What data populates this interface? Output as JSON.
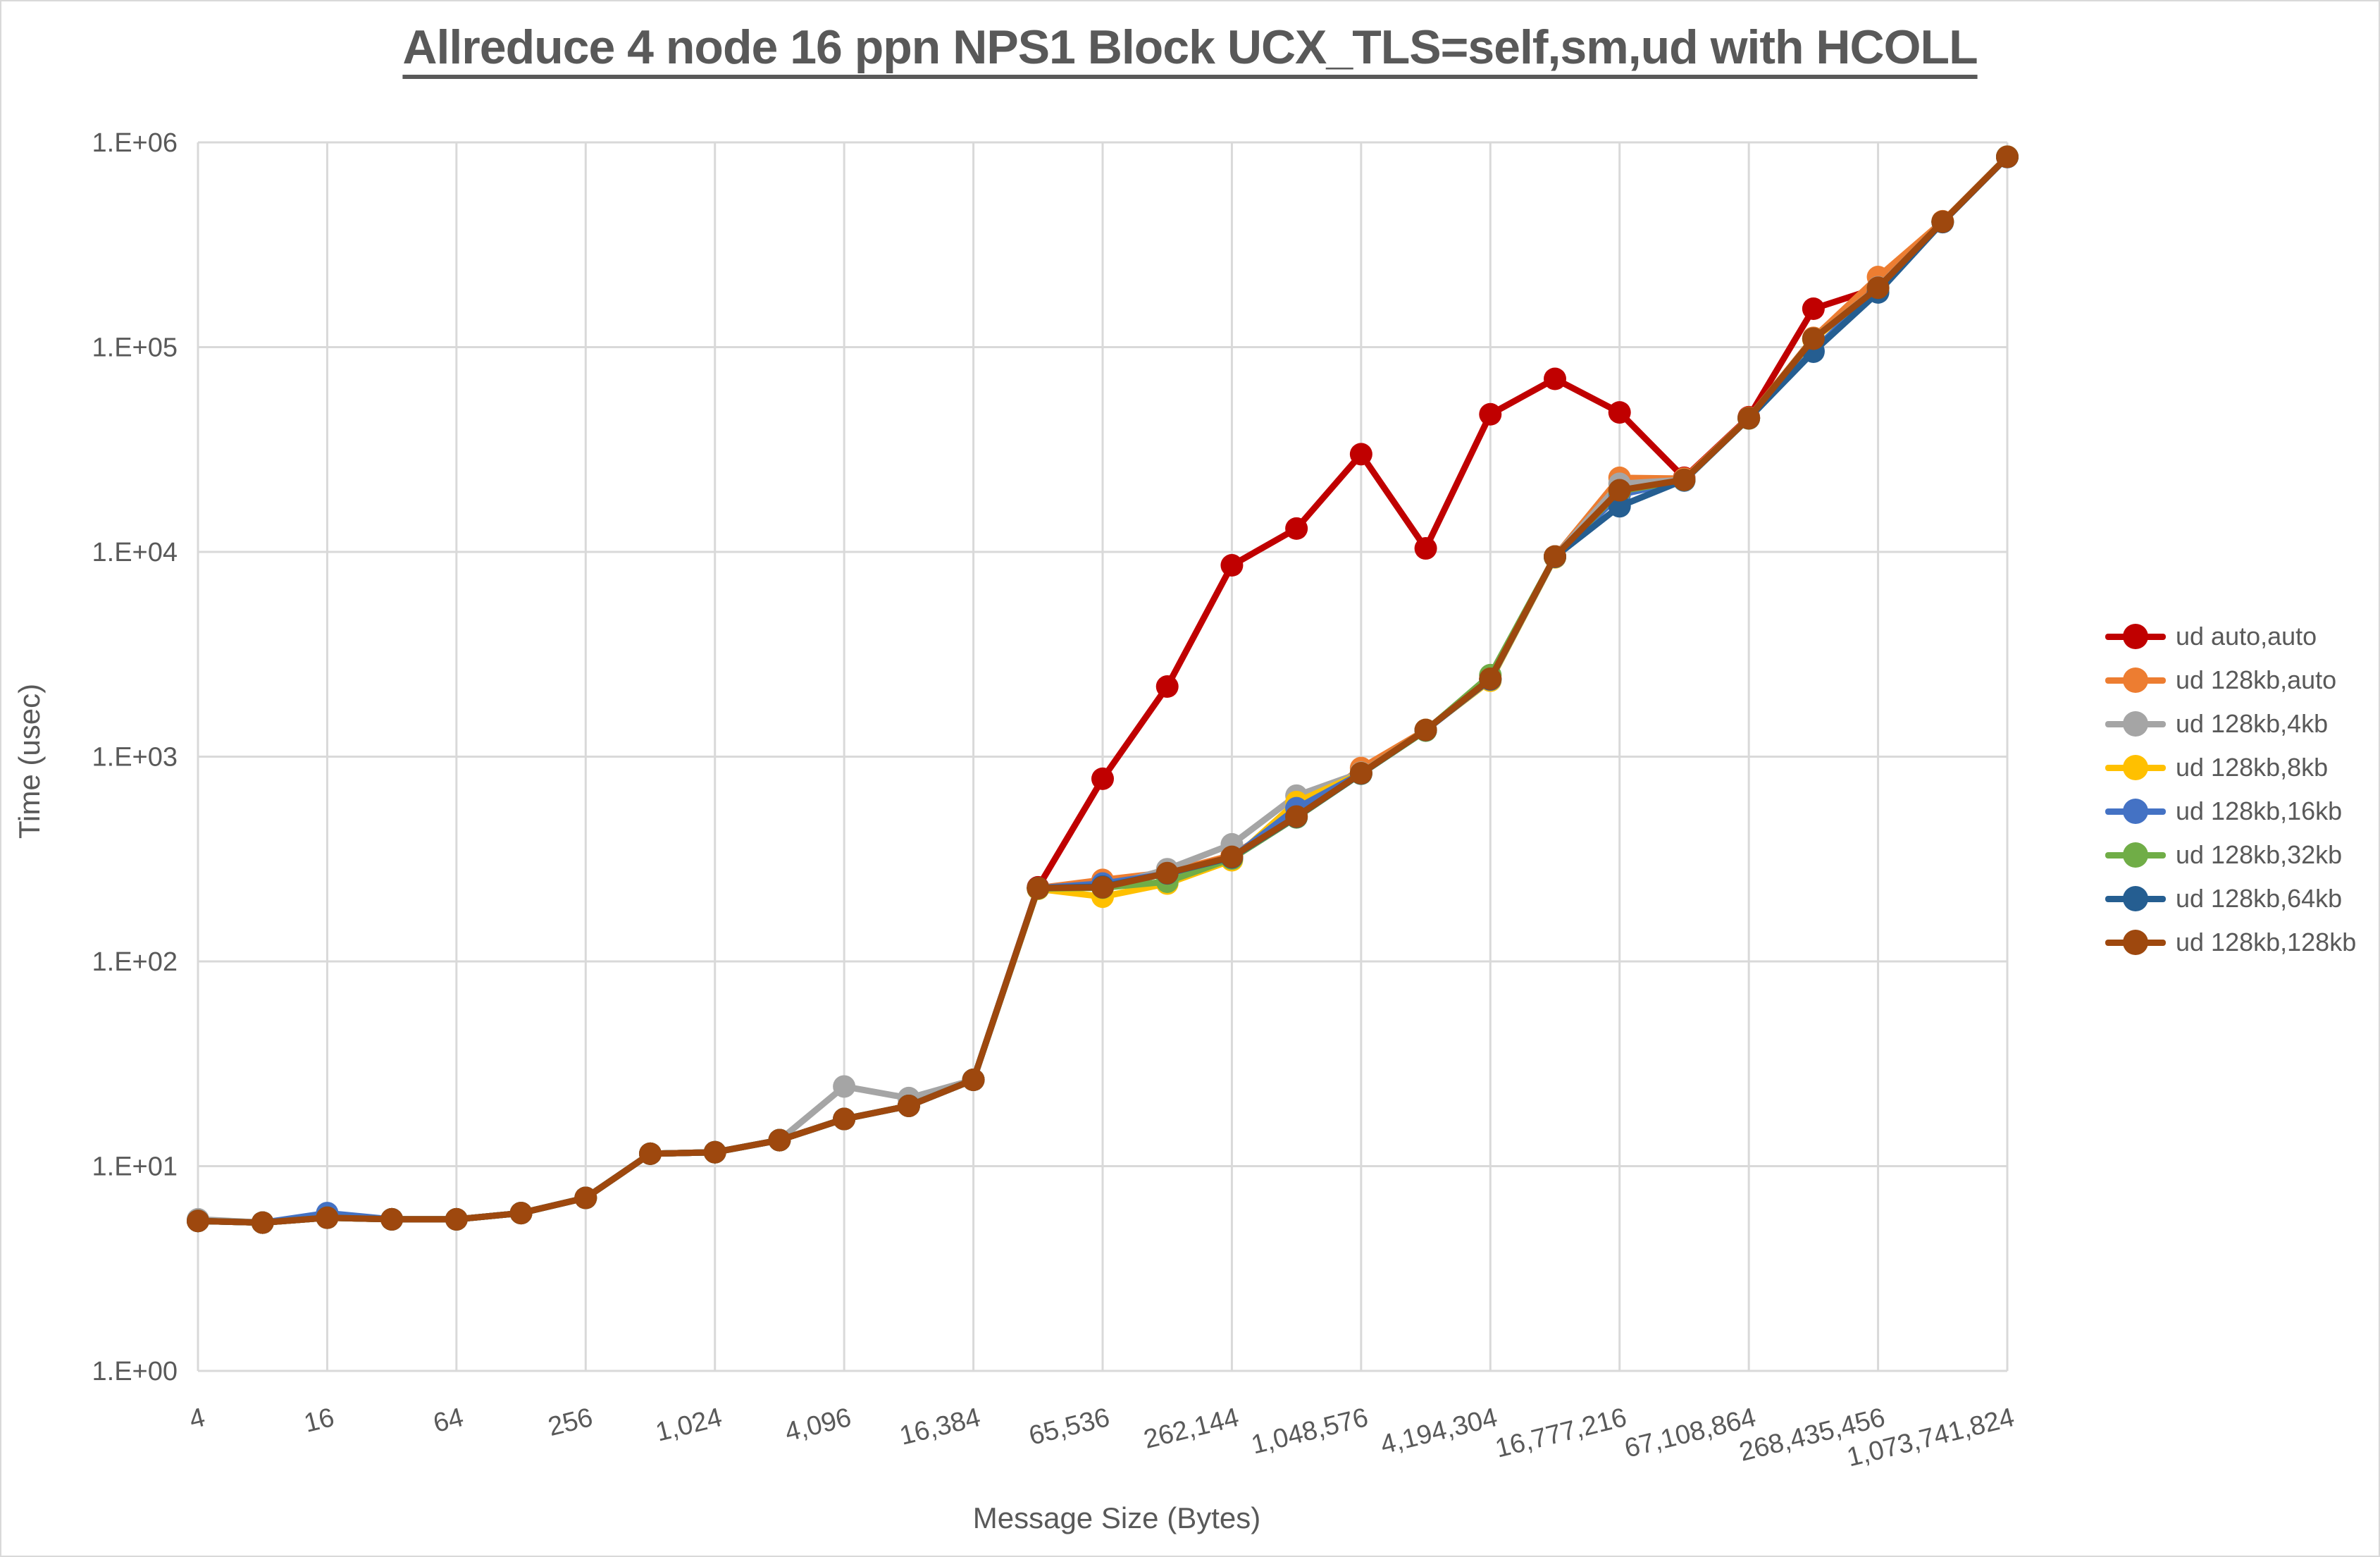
{
  "window": {
    "background": "#ffffff",
    "border_color": "#d9d9d9",
    "text_color": "#595959",
    "grid_color": "#d9d9d9"
  },
  "chart_data": {
    "type": "line",
    "title": "Allreduce 4 node 16 ppn NPS1 Block UCX_TLS=self,sm,ud with HCOLL",
    "xlabel": "Message Size (Bytes)",
    "ylabel": "Time (usec)",
    "x_scale": "log2",
    "y_scale": "log10",
    "ylim": [
      1,
      1000000
    ],
    "grid": true,
    "legend_position": "right",
    "y_tick_labels": [
      "1.E+00",
      "1.E+01",
      "1.E+02",
      "1.E+03",
      "1.E+04",
      "1.E+05",
      "1.E+06"
    ],
    "x": [
      4,
      8,
      16,
      32,
      64,
      128,
      256,
      512,
      1024,
      2048,
      4096,
      8192,
      16384,
      32768,
      65536,
      131072,
      262144,
      524288,
      1048576,
      2097152,
      4194304,
      8388608,
      16777216,
      33554432,
      67108864,
      134217728,
      268435456,
      536870912,
      1073741824
    ],
    "x_tick_labels": [
      "4",
      "16",
      "64",
      "256",
      "1,024",
      "4,096",
      "16,384",
      "65,536",
      "262,144",
      "1,048,576",
      "4,194,304",
      "16,777,216",
      "67,108,864",
      "268,435,456",
      "1,073,741,824"
    ],
    "series": [
      {
        "name": "ud auto,auto",
        "color": "#C00000",
        "values": [
          5.4,
          5.3,
          5.6,
          5.5,
          5.5,
          5.9,
          7.0,
          11.5,
          11.7,
          13.4,
          17,
          19.7,
          26.4,
          230,
          780,
          2200,
          8600,
          13000,
          30000,
          10400,
          47000,
          70000,
          48000,
          23000,
          45500,
          154000,
          195000,
          410000,
          850000
        ]
      },
      {
        "name": "ud 128kb,auto",
        "color": "#ED7D31",
        "values": [
          5.4,
          5.3,
          5.6,
          5.5,
          5.5,
          5.9,
          7.0,
          11.5,
          11.7,
          13.4,
          17,
          19.7,
          26.4,
          228,
          250,
          272,
          330,
          515,
          880,
          1350,
          2400,
          9500,
          23000,
          22800,
          45200,
          111000,
          220000,
          412000,
          852000
        ]
      },
      {
        "name": "ud 128kb,4kb",
        "color": "#A5A5A5",
        "values": [
          5.5,
          5.3,
          5.6,
          5.5,
          5.5,
          5.9,
          7.0,
          11.5,
          11.7,
          13.4,
          24.5,
          21.5,
          26.4,
          228,
          230,
          282,
          373,
          645,
          835,
          1350,
          2400,
          9500,
          21500,
          22500,
          45000,
          110000,
          196000,
          410000,
          850000
        ]
      },
      {
        "name": "ud 128kb,8kb",
        "color": "#FFC000",
        "values": [
          5.4,
          5.3,
          5.6,
          5.5,
          5.5,
          5.9,
          7.0,
          11.5,
          11.7,
          13.4,
          17,
          19.7,
          26.4,
          226,
          207,
          240,
          312,
          600,
          830,
          1350,
          2350,
          9400,
          19500,
          22400,
          44800,
          109000,
          194000,
          409000,
          849000
        ]
      },
      {
        "name": "ud 128kb,16kb",
        "color": "#4472C4",
        "values": [
          5.4,
          5.3,
          5.9,
          5.5,
          5.5,
          5.9,
          7.0,
          11.5,
          11.7,
          13.4,
          17,
          19.7,
          26.4,
          228,
          240,
          268,
          320,
          560,
          828,
          1345,
          2380,
          9450,
          19000,
          22300,
          44900,
          96000,
          193000,
          408000,
          848000
        ]
      },
      {
        "name": "ud 128kb,32kb",
        "color": "#70AD47",
        "values": [
          5.4,
          5.3,
          5.6,
          5.5,
          5.5,
          5.9,
          7.0,
          11.5,
          11.7,
          13.4,
          17,
          19.7,
          26.4,
          227,
          229,
          245,
          318,
          505,
          825,
          1340,
          2500,
          9480,
          19800,
          22400,
          44950,
          110000,
          194500,
          409000,
          851000
        ]
      },
      {
        "name": "ud 128kb,64kb",
        "color": "#255E91",
        "values": [
          5.4,
          5.3,
          5.6,
          5.5,
          5.5,
          5.9,
          7.0,
          11.5,
          11.7,
          13.4,
          17,
          19.7,
          26.4,
          228,
          232,
          269,
          322,
          508,
          827,
          1348,
          2390,
          9470,
          16700,
          22450,
          44900,
          95000,
          185000,
          408000,
          849000
        ]
      },
      {
        "name": "ud 128kb,128kb",
        "color": "#9E480E",
        "values": [
          5.4,
          5.3,
          5.6,
          5.5,
          5.5,
          5.9,
          7.0,
          11.5,
          11.7,
          13.4,
          17,
          19.7,
          26.4,
          228,
          230,
          270,
          324,
          510,
          830,
          1350,
          2400,
          9500,
          20000,
          22500,
          45000,
          110000,
          195000,
          410000,
          850000
        ]
      }
    ]
  }
}
